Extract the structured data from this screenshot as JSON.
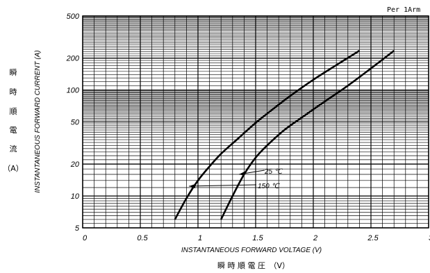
{
  "chart_data": {
    "type": "line",
    "note": "Per 1Arm",
    "xlabel": "INSTANTANEOUS FORWARD VOLTAGE (V)",
    "xlabel_jp": "瞬 時 順 電 圧　（V）",
    "ylabel": "INSTANTANEOUS FORWARD CURRENT (A)",
    "ylabel_jp": [
      "瞬",
      "時",
      "順",
      "電",
      "流",
      "（A）"
    ],
    "x_ticks": [
      "0",
      "0.5",
      "1",
      "1.5",
      "2",
      "2.5",
      "3"
    ],
    "y_ticks": [
      "5",
      "10",
      "20",
      "50",
      "100",
      "200",
      "500"
    ],
    "x_tick_values": [
      0,
      0.5,
      1,
      1.5,
      2,
      2.5,
      3
    ],
    "y_tick_values": [
      5,
      10,
      20,
      50,
      100,
      200,
      500
    ],
    "xlim": [
      0,
      3
    ],
    "ylim": [
      5,
      500
    ],
    "y_scale": "log",
    "grid": true,
    "series": [
      {
        "name": "25 °C",
        "x": [
          0.8,
          0.9,
          1.0,
          1.1,
          1.2,
          1.35,
          1.5,
          1.65,
          1.8,
          2.0,
          2.2,
          2.4
        ],
        "y": [
          6,
          9.5,
          14,
          19,
          25,
          35,
          49,
          66,
          88,
          125,
          172,
          235
        ]
      },
      {
        "name": "150 °C",
        "x": [
          1.2,
          1.3,
          1.4,
          1.5,
          1.6,
          1.75,
          1.9,
          2.1,
          2.3,
          2.5,
          2.7
        ],
        "y": [
          6,
          10,
          16,
          23,
          30,
          42,
          55,
          78,
          110,
          160,
          235
        ]
      }
    ],
    "annotations": [
      "25 ℃",
      "150 ℃"
    ]
  }
}
